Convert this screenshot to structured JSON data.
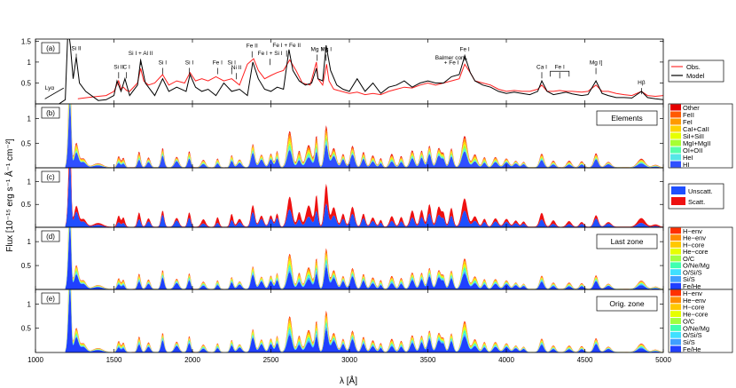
{
  "chart_data": {
    "type": "area",
    "figure": {
      "xlabel": "λ [Å]",
      "ylabel": "Flux [10⁻¹⁵ erg s⁻¹ Å⁻¹ cm⁻²]",
      "xlim": [
        1000,
        5000
      ],
      "xticks": [
        "1000",
        "1500",
        "2000",
        "2500",
        "3000",
        "3500",
        "4000",
        "4500",
        "5000"
      ]
    },
    "panels": [
      {
        "label": "(a)",
        "type": "line",
        "yticks": [
          "0.5",
          "1",
          "1.5"
        ],
        "ylim": [
          0,
          1.55
        ],
        "legend": [
          "Obs.",
          "Model"
        ],
        "legend_colors": [
          "#ff3030",
          "#000000"
        ],
        "annotations": [
          {
            "text": "Lyα",
            "x": 1090,
            "y": 0.28
          },
          {
            "text": "Si II",
            "x": 1260,
            "y": 1.22
          },
          {
            "text": "Si II",
            "x": 1530,
            "y": 0.78
          },
          {
            "text": "C I",
            "x": 1580,
            "y": 0.78
          },
          {
            "text": "Si I + Al II",
            "x": 1670,
            "y": 1.1
          },
          {
            "text": "Si I",
            "x": 1810,
            "y": 0.88
          },
          {
            "text": "Si I",
            "x": 1980,
            "y": 0.88
          },
          {
            "text": "Fe I",
            "x": 2160,
            "y": 0.88
          },
          {
            "text": "Si I",
            "x": 2250,
            "y": 0.88
          },
          {
            "text": "Ni II",
            "x": 2280,
            "y": 0.76
          },
          {
            "text": "Fe II",
            "x": 2380,
            "y": 1.28
          },
          {
            "text": "Fe I + Si I",
            "x": 2495,
            "y": 1.1
          },
          {
            "text": "Fe I + Fe II",
            "x": 2600,
            "y": 1.3
          },
          {
            "text": "Mg II",
            "x": 2795,
            "y": 1.2
          },
          {
            "text": "Mg I",
            "x": 2852,
            "y": 1.2
          },
          {
            "text": "Balmer cont.",
            "x": 3650,
            "y": 1.0
          },
          {
            "text": "+ Fe I",
            "x": 3650,
            "y": 0.88
          },
          {
            "text": "Fe I",
            "x": 3735,
            "y": 1.2
          },
          {
            "text": "Ca I",
            "x": 4226,
            "y": 0.78
          },
          {
            "text": "Fe I",
            "x": 4340,
            "y": 0.78
          },
          {
            "text": "Mg I]",
            "x": 4571,
            "y": 0.88
          },
          {
            "text": "Hβ",
            "x": 4861,
            "y": 0.4
          }
        ],
        "series": [
          {
            "name": "Obs.",
            "color": "#ff2020",
            "x": [
              1270,
              1330,
              1400,
              1450,
              1500,
              1530,
              1545,
              1560,
              1580,
              1600,
              1650,
              1670,
              1690,
              1720,
              1760,
              1810,
              1850,
              1900,
              1950,
              1985,
              2020,
              2060,
              2100,
              2150,
              2200,
              2250,
              2300,
              2350,
              2390,
              2420,
              2460,
              2500,
              2540,
              2580,
              2620,
              2660,
              2700,
              2750,
              2790,
              2800,
              2830,
              2855,
              2870,
              2900,
              2950,
              3000,
              3050,
              3100,
              3150,
              3200,
              3250,
              3300,
              3350,
              3400,
              3450,
              3500,
              3550,
              3600,
              3650,
              3700,
              3735,
              3770,
              3800,
              3850,
              3900,
              3950,
              4000,
              4050,
              4100,
              4150,
              4200,
              4226,
              4260,
              4300,
              4340,
              4380,
              4420,
              4480,
              4520,
              4571,
              4610,
              4650,
              4700,
              4750,
              4800,
              4861,
              4900,
              4950,
              5000
            ],
            "y": [
              0.12,
              0.15,
              0.18,
              0.2,
              0.3,
              0.55,
              0.35,
              0.4,
              0.32,
              0.3,
              0.5,
              0.85,
              0.55,
              0.45,
              0.5,
              0.7,
              0.45,
              0.55,
              0.5,
              0.75,
              0.55,
              0.6,
              0.55,
              0.65,
              0.55,
              0.6,
              0.45,
              0.95,
              1.08,
              0.8,
              0.6,
              0.68,
              0.75,
              0.8,
              1.05,
              0.8,
              0.5,
              0.45,
              1.0,
              0.6,
              0.45,
              0.95,
              0.55,
              0.35,
              0.3,
              0.25,
              0.28,
              0.22,
              0.25,
              0.22,
              0.3,
              0.35,
              0.4,
              0.38,
              0.45,
              0.5,
              0.45,
              0.5,
              0.55,
              0.6,
              0.95,
              0.75,
              0.55,
              0.5,
              0.45,
              0.35,
              0.3,
              0.32,
              0.3,
              0.3,
              0.35,
              0.45,
              0.3,
              0.3,
              0.32,
              0.3,
              0.3,
              0.28,
              0.3,
              0.45,
              0.3,
              0.3,
              0.25,
              0.22,
              0.2,
              0.3,
              0.2,
              0.18,
              0.2
            ]
          },
          {
            "name": "Model",
            "color": "#000000",
            "x": [
              1000,
              1100,
              1150,
              1190,
              1205,
              1215,
              1222,
              1240,
              1260,
              1280,
              1320,
              1400,
              1450,
              1500,
              1520,
              1545,
              1570,
              1600,
              1650,
              1670,
              1700,
              1760,
              1810,
              1850,
              1900,
              1960,
              1985,
              2020,
              2060,
              2100,
              2150,
              2200,
              2250,
              2300,
              2350,
              2385,
              2420,
              2460,
              2500,
              2540,
              2580,
              2615,
              2640,
              2680,
              2720,
              2760,
              2790,
              2800,
              2830,
              2852,
              2880,
              2920,
              2960,
              3000,
              3050,
              3100,
              3150,
              3200,
              3250,
              3300,
              3350,
              3400,
              3450,
              3500,
              3550,
              3600,
              3650,
              3700,
              3735,
              3770,
              3800,
              3850,
              3900,
              3950,
              4000,
              4050,
              4100,
              4150,
              4200,
              4226,
              4260,
              4300,
              4340,
              4380,
              4420,
              4480,
              4520,
              4571,
              4610,
              4650,
              4700,
              4750,
              4800,
              4861,
              4900,
              4950,
              5000
            ],
            "y": [
              0.0,
              0.0,
              0.0,
              0.1,
              1.6,
              1.6,
              1.4,
              0.6,
              1.12,
              0.5,
              0.3,
              0.08,
              0.1,
              0.2,
              0.55,
              0.3,
              0.6,
              0.2,
              0.45,
              1.05,
              0.5,
              0.2,
              0.6,
              0.3,
              0.4,
              0.3,
              0.7,
              0.4,
              0.3,
              0.35,
              0.2,
              0.5,
              0.3,
              0.35,
              0.2,
              1.0,
              0.6,
              0.35,
              0.3,
              0.4,
              0.35,
              1.3,
              0.8,
              0.55,
              0.45,
              0.5,
              0.85,
              0.6,
              0.55,
              1.4,
              0.8,
              0.45,
              0.35,
              0.3,
              0.6,
              0.3,
              0.5,
              0.25,
              0.4,
              0.45,
              0.55,
              0.4,
              0.5,
              0.55,
              0.5,
              0.5,
              0.65,
              0.7,
              1.15,
              0.75,
              0.55,
              0.45,
              0.4,
              0.3,
              0.25,
              0.28,
              0.25,
              0.22,
              0.3,
              0.55,
              0.3,
              0.22,
              0.25,
              0.28,
              0.24,
              0.2,
              0.22,
              0.55,
              0.25,
              0.2,
              0.15,
              0.15,
              0.14,
              0.3,
              0.15,
              0.12,
              0.1
            ]
          }
        ]
      },
      {
        "label": "(b)",
        "type": "area",
        "stacked": true,
        "yticks": [
          "0.5",
          "1"
        ],
        "ylim": [
          0,
          1.3
        ],
        "tag": "Elements",
        "legend": [
          "Other",
          "FeII",
          "FeI",
          "CaI+CaII",
          "SiI+SiII",
          "MgI+MgII",
          "OI+OII",
          "HeI",
          "HI"
        ],
        "legend_colors": [
          "#e60000",
          "#ff5a00",
          "#ff9a00",
          "#ffd200",
          "#e6ff00",
          "#a6ff33",
          "#55ffaa",
          "#55e6e6",
          "#3050ff"
        ]
      },
      {
        "label": "(c)",
        "type": "area",
        "stacked": true,
        "yticks": [
          "0.5",
          "1"
        ],
        "ylim": [
          0,
          1.3
        ],
        "legend": [
          "Unscatt.",
          "Scatt."
        ],
        "legend_colors": [
          "#1f4fff",
          "#ee1111"
        ]
      },
      {
        "label": "(d)",
        "type": "area",
        "stacked": true,
        "yticks": [
          "0.5",
          "1"
        ],
        "ylim": [
          0,
          1.3
        ],
        "tag": "Last zone",
        "legend": [
          "H−env",
          "He−env",
          "H−core",
          "He−core",
          "O/C",
          "O/Ne/Mg",
          "O/Si/S",
          "Si/S",
          "Fe/He"
        ],
        "legend_colors": [
          "#ff3000",
          "#ff8c00",
          "#ffc800",
          "#e6ff00",
          "#a0ff40",
          "#40ffb0",
          "#40e0ff",
          "#40a0ff",
          "#2040ff"
        ]
      },
      {
        "label": "(e)",
        "type": "area",
        "stacked": true,
        "yticks": [
          "0.5",
          "1"
        ],
        "ylim": [
          0,
          1.3
        ],
        "tag": "Orig. zone",
        "legend": [
          "H−env",
          "He−env",
          "H−core",
          "He−core",
          "O/C",
          "O/Ne/Mg",
          "O/Si/S",
          "Si/S",
          "Fe/He"
        ],
        "legend_colors": [
          "#ff3000",
          "#ff8c00",
          "#ffc800",
          "#e6ff00",
          "#a0ff40",
          "#40ffb0",
          "#40e0ff",
          "#40a0ff",
          "#2040ff"
        ]
      }
    ]
  }
}
